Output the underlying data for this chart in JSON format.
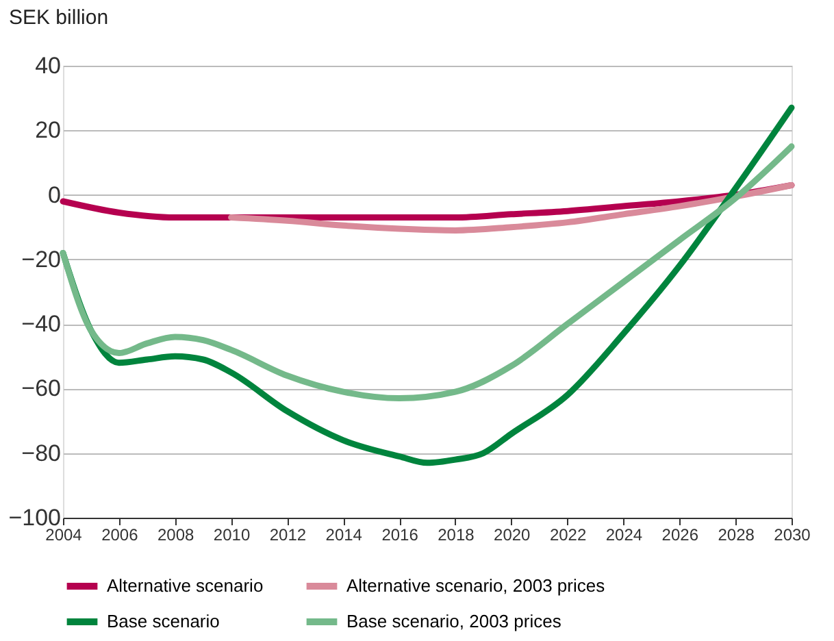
{
  "chart_data": {
    "type": "line",
    "ylabel": "SEK billion",
    "xlim": [
      2004,
      2030
    ],
    "xticks": [
      2004,
      2006,
      2008,
      2010,
      2012,
      2014,
      2016,
      2018,
      2020,
      2022,
      2024,
      2026,
      2028,
      2030
    ],
    "ylim": [
      -100,
      40
    ],
    "yticks": [
      -100,
      -80,
      -60,
      -40,
      -20,
      0,
      20,
      40
    ],
    "grid": "y",
    "legend": "bottom",
    "marker": "none",
    "line_style": "solid",
    "series": [
      {
        "name": "Alternative scenario",
        "color": "#b5004f",
        "x": [
          2004,
          2006,
          2008,
          2010,
          2012,
          2014,
          2016,
          2018,
          2020,
          2022,
          2024,
          2026,
          2028,
          2030
        ],
        "values": [
          -2,
          -5.5,
          -7,
          -7,
          -7,
          -7,
          -7,
          -7,
          -6,
          -5,
          -3.5,
          -2,
          0,
          3
        ]
      },
      {
        "name": "Alternative scenario, 2003 prices",
        "color": "#d98a9a",
        "x": [
          2010,
          2012,
          2014,
          2016,
          2018,
          2020,
          2022,
          2024,
          2026,
          2028,
          2030
        ],
        "values": [
          -7,
          -8,
          -9.5,
          -10.5,
          -11,
          -10,
          -8.5,
          -6,
          -3.5,
          -0.5,
          3
        ]
      },
      {
        "name": "Base scenario",
        "color": "#00843d",
        "x": [
          2004,
          2005,
          2006,
          2007,
          2008,
          2009,
          2010,
          2012,
          2014,
          2016,
          2017,
          2018,
          2019,
          2020,
          2022,
          2024,
          2026,
          2028,
          2030
        ],
        "values": [
          -18,
          -42,
          -52,
          -51,
          -50,
          -51,
          -55,
          -67,
          -76,
          -81,
          -83,
          -82,
          -80,
          -74,
          -62,
          -43,
          -22,
          2,
          27
        ]
      },
      {
        "name": "Base scenario, 2003 prices",
        "color": "#74b98a",
        "x": [
          2004,
          2005,
          2006,
          2007,
          2008,
          2009,
          2010,
          2012,
          2014,
          2016,
          2018,
          2020,
          2022,
          2024,
          2026,
          2028,
          2030
        ],
        "values": [
          -18,
          -42,
          -49,
          -46,
          -44,
          -45,
          -48,
          -56,
          -61,
          -63,
          -61,
          -53,
          -40,
          -27,
          -14,
          -1,
          15
        ]
      }
    ]
  }
}
